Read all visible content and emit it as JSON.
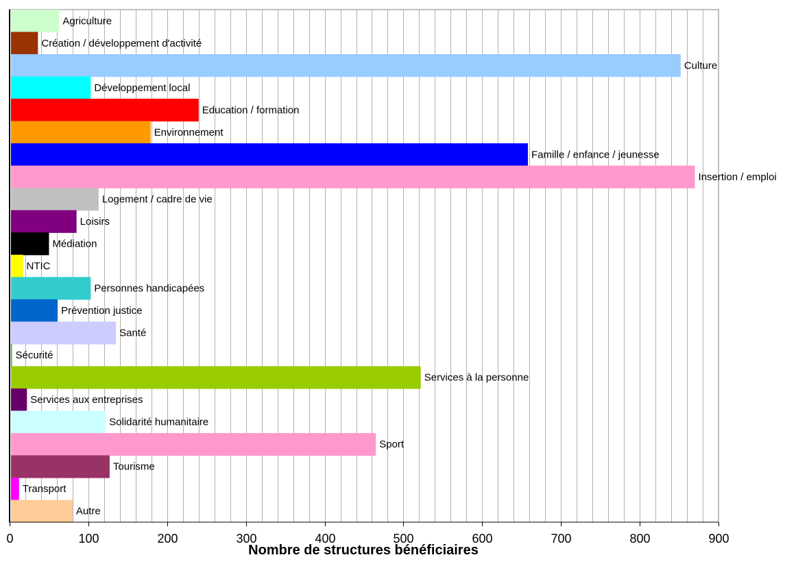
{
  "chart_data": {
    "type": "bar",
    "orientation": "horizontal",
    "title": "",
    "xlabel": "Nombre de structures bénéficiaires",
    "ylabel": "",
    "xlim": [
      0,
      900
    ],
    "xticks": [
      0,
      100,
      200,
      300,
      400,
      500,
      600,
      700,
      800,
      900
    ],
    "minor_gridline_step": 20,
    "grid": true,
    "categories": [
      "Agriculture",
      "Création / développement d'activité",
      "Culture",
      "Développement local",
      "Education / formation",
      "Environnement",
      "Famille / enfance / jeunesse",
      "Insertion / emploi",
      "Logement / cadre de vie",
      "Loisirs",
      "Médiation",
      "NTIC",
      "Personnes handicapées",
      "Prévention justice",
      "Santé",
      "Sécurité",
      "Services à la personne",
      "Services aux entreprises",
      "Solidarité humanitaire",
      "Sport",
      "Tourisme",
      "Transport",
      "Autre"
    ],
    "values": [
      63,
      36,
      852,
      103,
      240,
      179,
      658,
      870,
      113,
      85,
      50,
      17,
      103,
      61,
      135,
      3,
      522,
      22,
      122,
      465,
      127,
      12,
      80
    ],
    "colors": [
      "#ccffcc",
      "#993300",
      "#99ccff",
      "#00ffff",
      "#ff0000",
      "#ff9900",
      "#0000ff",
      "#ff99cc",
      "#c0c0c0",
      "#800080",
      "#000000",
      "#ffff00",
      "#33cccc",
      "#0066cc",
      "#ccccff",
      "#00cc00",
      "#99cc00",
      "#660066",
      "#ccffff",
      "#ff99cc",
      "#993366",
      "#ff00ff",
      "#ffcc99"
    ]
  }
}
